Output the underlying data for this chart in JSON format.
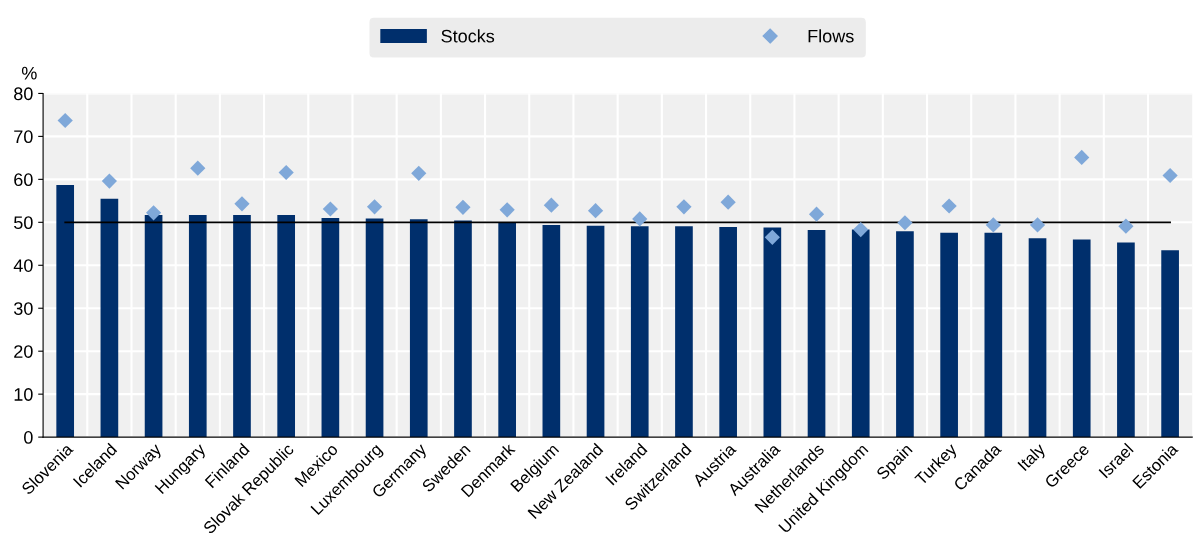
{
  "chart_data": {
    "type": "bar",
    "ylabel": "%",
    "categories": [
      "Slovenia",
      "Iceland",
      "Norway",
      "Hungary",
      "Finland",
      "Slovak Republic",
      "Mexico",
      "Luxembourg",
      "Germany",
      "Sweden",
      "Denmark",
      "Belgium",
      "New Zealand",
      "Ireland",
      "Switzerland",
      "Austria",
      "Australia",
      "Netherlands",
      "United Kingdom",
      "Spain",
      "Turkey",
      "Canada",
      "Italy",
      "Greece",
      "Israel",
      "Estonia"
    ],
    "series": [
      {
        "name": "Stocks",
        "color": "#002f6c",
        "values": [
          58.7,
          55.5,
          51.7,
          51.7,
          51.7,
          51.7,
          51.0,
          50.9,
          50.7,
          50.4,
          50.1,
          49.4,
          49.2,
          49.1,
          49.1,
          48.9,
          48.8,
          48.2,
          48.3,
          47.9,
          47.6,
          47.6,
          46.3,
          46.0,
          45.3,
          43.5
        ]
      },
      {
        "name": "Flows",
        "type": "scatter",
        "marker": "diamond",
        "color": "#7fa8d9",
        "values": [
          73.7,
          59.6,
          52.2,
          62.6,
          54.3,
          61.6,
          53.1,
          53.6,
          61.4,
          53.5,
          52.9,
          54.0,
          52.7,
          50.8,
          53.6,
          54.7,
          46.5,
          51.9,
          48.3,
          49.9,
          53.8,
          49.4,
          49.4,
          65.1,
          49.1,
          60.9
        ]
      }
    ],
    "ylim": [
      0,
      80
    ],
    "yticks": [
      0,
      10,
      20,
      30,
      40,
      50,
      60,
      70,
      80
    ],
    "ref_lines": [
      {
        "axis": "y",
        "value": 50,
        "color": "#000000"
      }
    ],
    "grid": true,
    "legend": "top"
  }
}
